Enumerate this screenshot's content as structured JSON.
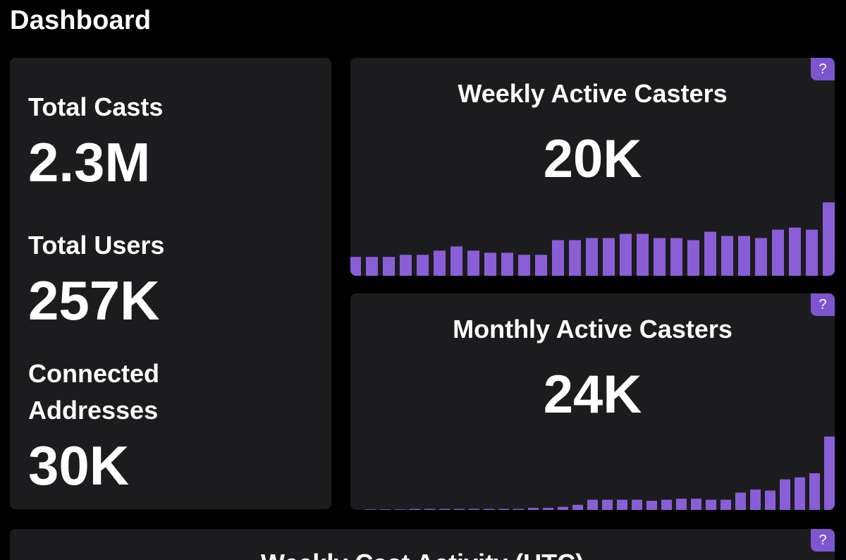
{
  "header": {
    "title": "Dashboard"
  },
  "stats": {
    "total_casts_label": "Total Casts",
    "total_casts_value": "2.3M",
    "total_users_label": "Total Users",
    "total_users_value": "257K",
    "connected_label": "Connected Addresses",
    "connected_value": "30K"
  },
  "help_label": "?",
  "colors": {
    "accent": "#8a5ed6",
    "card": "#1c1c1e",
    "background": "#000000"
  },
  "weekly_card": {
    "title": "Weekly Active Casters",
    "value": "20K"
  },
  "monthly_card": {
    "title": "Monthly Active Casters",
    "value": "24K"
  },
  "bottom_card": {
    "title": "Weekly Cast Activity (UTC)"
  },
  "chart_data": [
    {
      "type": "bar",
      "series": [
        {
          "values": [
            8,
            9,
            9,
            9,
            10,
            10,
            12,
            14,
            12,
            11,
            11,
            10,
            10,
            17,
            17,
            18,
            18,
            20,
            20,
            18,
            18,
            17,
            21,
            19,
            19,
            18,
            22,
            23,
            22,
            35
          ]
        }
      ]
    },
    {
      "type": "bar",
      "series": [
        {
          "values": [
            0,
            0,
            0,
            0.5,
            0.5,
            0.5,
            0.5,
            0.5,
            0.5,
            0.5,
            0.5,
            1,
            1,
            1.5,
            2.5,
            5,
            5,
            5,
            5,
            4.5,
            5,
            5.5,
            5.5,
            5,
            5,
            8.5,
            10,
            9.5,
            15,
            16,
            18,
            36
          ]
        }
      ]
    }
  ]
}
